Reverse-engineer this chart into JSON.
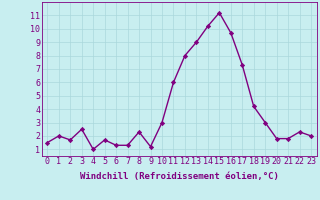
{
  "x": [
    0,
    1,
    2,
    3,
    4,
    5,
    6,
    7,
    8,
    9,
    10,
    11,
    12,
    13,
    14,
    15,
    16,
    17,
    18,
    19,
    20,
    21,
    22,
    23
  ],
  "y": [
    1.5,
    2.0,
    1.7,
    2.5,
    1.0,
    1.7,
    1.3,
    1.3,
    2.3,
    1.2,
    3.0,
    6.0,
    8.0,
    9.0,
    10.2,
    11.2,
    9.7,
    7.3,
    4.2,
    3.0,
    1.8,
    1.8,
    2.3,
    2.0
  ],
  "color": "#800080",
  "bg_color": "#c8eef0",
  "grid_color": "#aad8dc",
  "xlabel": "Windchill (Refroidissement éolien,°C)",
  "ylim": [
    0.5,
    12
  ],
  "xlim": [
    -0.5,
    23.5
  ],
  "yticks": [
    1,
    2,
    3,
    4,
    5,
    6,
    7,
    8,
    9,
    10,
    11
  ],
  "xticks": [
    0,
    1,
    2,
    3,
    4,
    5,
    6,
    7,
    8,
    9,
    10,
    11,
    12,
    13,
    14,
    15,
    16,
    17,
    18,
    19,
    20,
    21,
    22,
    23
  ],
  "marker": "D",
  "marker_size": 2.2,
  "line_width": 1.0,
  "xlabel_fontsize": 6.5,
  "tick_fontsize": 6.0
}
